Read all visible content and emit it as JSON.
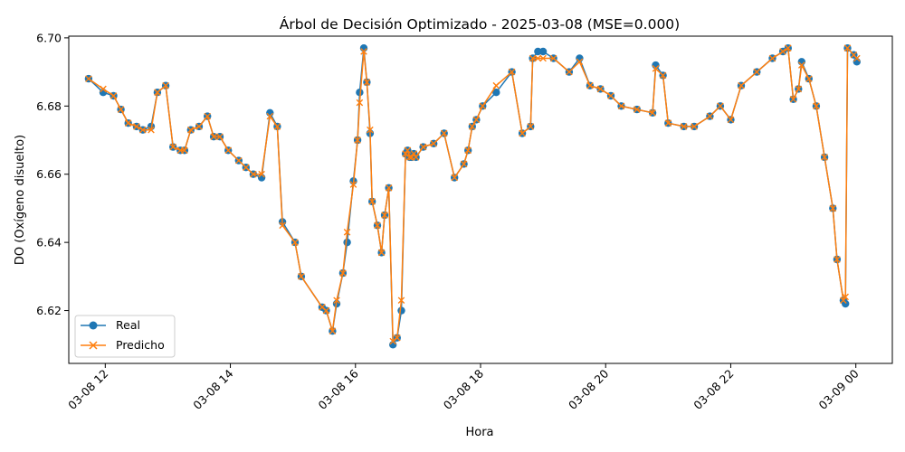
{
  "chart_data": {
    "type": "line",
    "title": "Árbol de Decisión Optimizado - 2025-03-08 (MSE=0.000)",
    "xlabel": "Hora",
    "ylabel": "DO (Oxígeno disuelto)",
    "xlim": [
      "2025-03-08 11:25",
      "2025-03-09 00:35"
    ],
    "ylim": [
      6.6045,
      6.7005
    ],
    "xticks": [
      {
        "t": "2025-03-08 12:00",
        "label": "03-08 12"
      },
      {
        "t": "2025-03-08 14:00",
        "label": "03-08 14"
      },
      {
        "t": "2025-03-08 16:00",
        "label": "03-08 16"
      },
      {
        "t": "2025-03-08 18:00",
        "label": "03-08 18"
      },
      {
        "t": "2025-03-08 20:00",
        "label": "03-08 20"
      },
      {
        "t": "2025-03-08 22:00",
        "label": "03-08 22"
      },
      {
        "t": "2025-03-09 00:00",
        "label": "03-09 00"
      }
    ],
    "yticks": [
      6.62,
      6.64,
      6.66,
      6.68,
      6.7
    ],
    "ytick_labels": [
      "6.62",
      "6.64",
      "6.66",
      "6.68",
      "6.70"
    ],
    "grid": false,
    "legend_position": "lower-left",
    "x": [
      "2025-03-08 11:44",
      "2025-03-08 11:58",
      "2025-03-08 12:08",
      "2025-03-08 12:15",
      "2025-03-08 12:22",
      "2025-03-08 12:30",
      "2025-03-08 12:36",
      "2025-03-08 12:44",
      "2025-03-08 12:50",
      "2025-03-08 12:58",
      "2025-03-08 13:05",
      "2025-03-08 13:12",
      "2025-03-08 13:16",
      "2025-03-08 13:22",
      "2025-03-08 13:30",
      "2025-03-08 13:38",
      "2025-03-08 13:44",
      "2025-03-08 13:50",
      "2025-03-08 13:58",
      "2025-03-08 14:08",
      "2025-03-08 14:15",
      "2025-03-08 14:22",
      "2025-03-08 14:30",
      "2025-03-08 14:38",
      "2025-03-08 14:45",
      "2025-03-08 14:50",
      "2025-03-08 15:02",
      "2025-03-08 15:08",
      "2025-03-08 15:28",
      "2025-03-08 15:32",
      "2025-03-08 15:38",
      "2025-03-08 15:42",
      "2025-03-08 15:48",
      "2025-03-08 15:52",
      "2025-03-08 15:58",
      "2025-03-08 16:02",
      "2025-03-08 16:04",
      "2025-03-08 16:08",
      "2025-03-08 16:11",
      "2025-03-08 16:14",
      "2025-03-08 16:16",
      "2025-03-08 16:21",
      "2025-03-08 16:25",
      "2025-03-08 16:28",
      "2025-03-08 16:32",
      "2025-03-08 16:36",
      "2025-03-08 16:40",
      "2025-03-08 16:44",
      "2025-03-08 16:48",
      "2025-03-08 16:50",
      "2025-03-08 16:52",
      "2025-03-08 16:54",
      "2025-03-08 16:56",
      "2025-03-08 16:58",
      "2025-03-08 17:05",
      "2025-03-08 17:15",
      "2025-03-08 17:25",
      "2025-03-08 17:35",
      "2025-03-08 17:44",
      "2025-03-08 17:48",
      "2025-03-08 17:52",
      "2025-03-08 17:56",
      "2025-03-08 18:02",
      "2025-03-08 18:15",
      "2025-03-08 18:30",
      "2025-03-08 18:40",
      "2025-03-08 18:48",
      "2025-03-08 18:50",
      "2025-03-08 18:55",
      "2025-03-08 19:00",
      "2025-03-08 19:10",
      "2025-03-08 19:25",
      "2025-03-08 19:35",
      "2025-03-08 19:45",
      "2025-03-08 19:55",
      "2025-03-08 20:05",
      "2025-03-08 20:15",
      "2025-03-08 20:30",
      "2025-03-08 20:45",
      "2025-03-08 20:48",
      "2025-03-08 20:55",
      "2025-03-08 21:00",
      "2025-03-08 21:15",
      "2025-03-08 21:25",
      "2025-03-08 21:40",
      "2025-03-08 21:50",
      "2025-03-08 22:00",
      "2025-03-08 22:10",
      "2025-03-08 22:25",
      "2025-03-08 22:40",
      "2025-03-08 22:50",
      "2025-03-08 22:55",
      "2025-03-08 23:00",
      "2025-03-08 23:05",
      "2025-03-08 23:08",
      "2025-03-08 23:15",
      "2025-03-08 23:22",
      "2025-03-08 23:30",
      "2025-03-08 23:38",
      "2025-03-08 23:42",
      "2025-03-08 23:48",
      "2025-03-08 23:50",
      "2025-03-08 23:52",
      "2025-03-08 23:58",
      "2025-03-09 00:01"
    ],
    "series": [
      {
        "name": "Real",
        "color": "#1f77b4",
        "marker": "circle",
        "values": [
          6.688,
          6.684,
          6.683,
          6.679,
          6.675,
          6.674,
          6.673,
          6.674,
          6.684,
          6.686,
          6.668,
          6.667,
          6.667,
          6.673,
          6.674,
          6.677,
          6.671,
          6.671,
          6.667,
          6.664,
          6.662,
          6.66,
          6.659,
          6.678,
          6.674,
          6.646,
          6.64,
          6.63,
          6.621,
          6.62,
          6.614,
          6.622,
          6.631,
          6.64,
          6.658,
          6.67,
          6.684,
          6.697,
          6.687,
          6.672,
          6.652,
          6.645,
          6.637,
          6.648,
          6.656,
          6.61,
          6.612,
          6.62,
          6.666,
          6.667,
          6.665,
          6.665,
          6.666,
          6.665,
          6.668,
          6.669,
          6.672,
          6.659,
          6.663,
          6.667,
          6.674,
          6.676,
          6.68,
          6.684,
          6.69,
          6.672,
          6.674,
          6.694,
          6.696,
          6.696,
          6.694,
          6.69,
          6.694,
          6.686,
          6.685,
          6.683,
          6.68,
          6.679,
          6.678,
          6.692,
          6.689,
          6.675,
          6.674,
          6.674,
          6.677,
          6.68,
          6.676,
          6.686,
          6.69,
          6.694,
          6.696,
          6.697,
          6.682,
          6.685,
          6.693,
          6.688,
          6.68,
          6.665,
          6.65,
          6.635,
          6.623,
          6.622,
          6.697,
          6.695,
          6.693
        ]
      },
      {
        "name": "Predicho",
        "color": "#ff7f0e",
        "marker": "x",
        "values": [
          6.688,
          6.685,
          6.683,
          6.679,
          6.675,
          6.674,
          6.673,
          6.673,
          6.684,
          6.686,
          6.668,
          6.667,
          6.667,
          6.673,
          6.674,
          6.677,
          6.671,
          6.671,
          6.667,
          6.664,
          6.662,
          6.66,
          6.66,
          6.677,
          6.674,
          6.645,
          6.64,
          6.63,
          6.621,
          6.62,
          6.614,
          6.623,
          6.631,
          6.643,
          6.657,
          6.67,
          6.681,
          6.696,
          6.687,
          6.673,
          6.652,
          6.645,
          6.637,
          6.648,
          6.656,
          6.611,
          6.612,
          6.623,
          6.666,
          6.667,
          6.665,
          6.665,
          6.666,
          6.665,
          6.668,
          6.669,
          6.672,
          6.659,
          6.663,
          6.667,
          6.674,
          6.676,
          6.68,
          6.686,
          6.69,
          6.672,
          6.674,
          6.694,
          6.694,
          6.694,
          6.694,
          6.69,
          6.693,
          6.686,
          6.685,
          6.683,
          6.68,
          6.679,
          6.678,
          6.691,
          6.689,
          6.675,
          6.674,
          6.674,
          6.677,
          6.68,
          6.676,
          6.686,
          6.69,
          6.694,
          6.696,
          6.697,
          6.682,
          6.685,
          6.692,
          6.688,
          6.68,
          6.665,
          6.65,
          6.635,
          6.623,
          6.624,
          6.697,
          6.695,
          6.694
        ]
      }
    ]
  }
}
